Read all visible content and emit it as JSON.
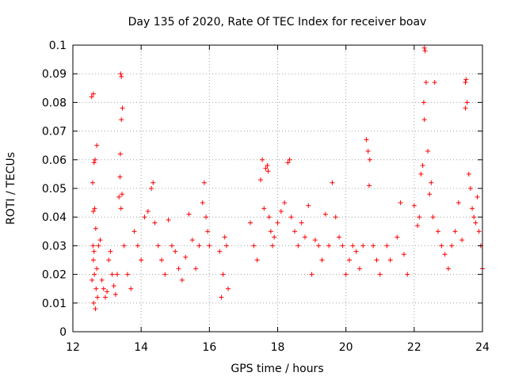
{
  "chart_data": {
    "type": "scatter",
    "title": "Day 135 of 2020, Rate Of TEC Index for receiver boav",
    "xlabel": "GPS time / hours",
    "ylabel": "ROTI / TECUs",
    "xlim": [
      12,
      24
    ],
    "ylim": [
      0,
      0.1
    ],
    "x_ticks": [
      "12",
      "14",
      "16",
      "18",
      "20",
      "22",
      "24"
    ],
    "y_ticks": [
      "0",
      "0.01",
      "0.02",
      "0.03",
      "0.04",
      "0.05",
      "0.06",
      "0.07",
      "0.08",
      "0.09",
      "0.1"
    ],
    "grid": true,
    "marker": "plus",
    "color": "#ff0000",
    "series": [
      {
        "x": [
          12.55,
          12.6,
          12.65,
          12.62,
          12.58,
          12.7,
          12.6,
          12.64,
          12.67,
          12.59,
          12.6,
          12.63,
          12.68,
          12.72,
          12.61,
          12.66,
          12.56,
          12.62,
          12.7,
          12.75,
          12.8,
          12.85,
          12.9,
          12.95,
          13.0,
          13.05,
          13.1,
          13.15,
          13.2,
          13.25,
          13.3,
          13.35,
          13.38,
          13.42,
          13.4,
          13.45,
          13.42,
          13.39,
          13.44,
          13.41,
          13.5,
          13.6,
          13.7,
          13.8,
          13.9,
          14.0,
          14.1,
          14.2,
          14.3,
          14.35,
          14.4,
          14.5,
          14.6,
          14.7,
          14.8,
          14.9,
          15.0,
          15.1,
          15.2,
          15.3,
          15.4,
          15.5,
          15.6,
          15.7,
          15.8,
          15.85,
          15.9,
          15.95,
          16.0,
          16.3,
          16.35,
          16.4,
          16.45,
          16.5,
          16.55,
          17.2,
          17.3,
          17.4,
          17.5,
          17.55,
          17.6,
          17.65,
          17.7,
          17.72,
          17.75,
          17.8,
          17.85,
          17.9,
          18.0,
          18.1,
          18.2,
          18.3,
          18.35,
          18.4,
          18.5,
          18.6,
          18.7,
          18.8,
          18.9,
          19.0,
          19.1,
          19.2,
          19.3,
          19.4,
          19.5,
          19.6,
          19.7,
          19.8,
          19.9,
          20.0,
          20.1,
          20.2,
          20.3,
          20.4,
          20.5,
          20.6,
          20.65,
          20.7,
          20.68,
          20.8,
          20.9,
          21.0,
          21.2,
          21.3,
          21.5,
          21.6,
          21.7,
          21.8,
          22.0,
          22.1,
          22.15,
          22.2,
          22.25,
          22.3,
          22.32,
          22.35,
          22.28,
          22.3,
          22.4,
          22.45,
          22.5,
          22.55,
          22.6,
          22.7,
          22.8,
          22.9,
          23.0,
          23.1,
          23.2,
          23.3,
          23.4,
          23.5,
          23.52,
          23.55,
          23.5,
          23.6,
          23.65,
          23.7,
          23.75,
          23.8,
          23.85,
          23.9,
          23.95,
          24.0
        ],
        "y": [
          0.082,
          0.083,
          0.06,
          0.059,
          0.052,
          0.065,
          0.042,
          0.043,
          0.036,
          0.03,
          0.025,
          0.02,
          0.015,
          0.012,
          0.01,
          0.008,
          0.018,
          0.028,
          0.022,
          0.03,
          0.032,
          0.018,
          0.015,
          0.012,
          0.014,
          0.025,
          0.028,
          0.02,
          0.016,
          0.013,
          0.02,
          0.047,
          0.054,
          0.089,
          0.09,
          0.078,
          0.074,
          0.062,
          0.048,
          0.043,
          0.03,
          0.02,
          0.015,
          0.035,
          0.03,
          0.025,
          0.04,
          0.042,
          0.05,
          0.052,
          0.038,
          0.03,
          0.025,
          0.02,
          0.039,
          0.03,
          0.028,
          0.022,
          0.018,
          0.026,
          0.041,
          0.032,
          0.022,
          0.03,
          0.045,
          0.052,
          0.04,
          0.035,
          0.03,
          0.028,
          0.012,
          0.02,
          0.033,
          0.03,
          0.015,
          0.038,
          0.03,
          0.025,
          0.053,
          0.06,
          0.043,
          0.057,
          0.058,
          0.056,
          0.04,
          0.035,
          0.03,
          0.033,
          0.038,
          0.042,
          0.045,
          0.059,
          0.06,
          0.04,
          0.035,
          0.03,
          0.038,
          0.033,
          0.044,
          0.02,
          0.032,
          0.03,
          0.025,
          0.041,
          0.03,
          0.052,
          0.04,
          0.033,
          0.03,
          0.02,
          0.025,
          0.03,
          0.028,
          0.022,
          0.03,
          0.067,
          0.063,
          0.06,
          0.051,
          0.03,
          0.025,
          0.02,
          0.03,
          0.025,
          0.033,
          0.045,
          0.027,
          0.02,
          0.044,
          0.037,
          0.04,
          0.055,
          0.058,
          0.099,
          0.098,
          0.087,
          0.08,
          0.074,
          0.063,
          0.048,
          0.052,
          0.04,
          0.087,
          0.035,
          0.03,
          0.027,
          0.022,
          0.03,
          0.035,
          0.045,
          0.032,
          0.087,
          0.088,
          0.08,
          0.078,
          0.055,
          0.05,
          0.043,
          0.04,
          0.038,
          0.047,
          0.035,
          0.03,
          0.022
        ]
      }
    ]
  }
}
